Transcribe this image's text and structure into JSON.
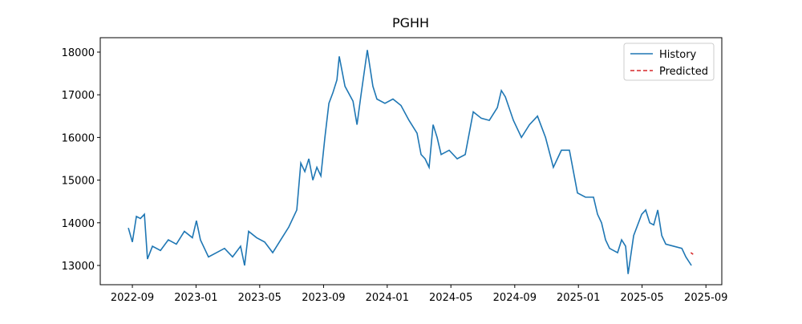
{
  "chart_data": {
    "type": "line",
    "title": "PGHH",
    "xlim": [
      2022.499,
      2025.75
    ],
    "ylim": [
      12549,
      18338
    ],
    "xticks": [
      {
        "value": 2022.667,
        "label": "2022-09"
      },
      {
        "value": 2023.0,
        "label": "2023-01"
      },
      {
        "value": 2023.333,
        "label": "2023-05"
      },
      {
        "value": 2023.667,
        "label": "2023-09"
      },
      {
        "value": 2024.0,
        "label": "2024-01"
      },
      {
        "value": 2024.333,
        "label": "2024-05"
      },
      {
        "value": 2024.667,
        "label": "2024-09"
      },
      {
        "value": 2025.0,
        "label": "2025-01"
      },
      {
        "value": 2025.333,
        "label": "2025-05"
      },
      {
        "value": 2025.667,
        "label": "2025-09"
      }
    ],
    "yticks": [
      13000,
      14000,
      15000,
      16000,
      17000,
      18000
    ],
    "legend": "upper right",
    "series": [
      {
        "name": "History",
        "color": "#1f77b4",
        "dash": "solid",
        "x": [
          2022.646,
          2022.667,
          2022.688,
          2022.709,
          2022.73,
          2022.746,
          2022.772,
          2022.814,
          2022.855,
          2022.897,
          2022.939,
          2022.981,
          2023.002,
          2023.023,
          2023.065,
          2023.107,
          2023.149,
          2023.191,
          2023.233,
          2023.254,
          2023.275,
          2023.317,
          2023.359,
          2023.401,
          2023.443,
          2023.485,
          2023.527,
          2023.548,
          2023.569,
          2023.59,
          2023.611,
          2023.632,
          2023.653,
          2023.674,
          2023.695,
          2023.716,
          2023.737,
          2023.749,
          2023.779,
          2023.821,
          2023.842,
          2023.863,
          2023.896,
          2023.925,
          2023.946,
          2023.988,
          2024.03,
          2024.072,
          2024.114,
          2024.156,
          2024.177,
          2024.198,
          2024.219,
          2024.24,
          2024.261,
          2024.282,
          2024.324,
          2024.366,
          2024.408,
          2024.45,
          2024.492,
          2024.534,
          2024.576,
          2024.597,
          2024.618,
          2024.66,
          2024.702,
          2024.744,
          2024.786,
          2024.828,
          2024.869,
          2024.911,
          2024.953,
          2024.995,
          2025.037,
          2025.079,
          2025.1,
          2025.121,
          2025.142,
          2025.163,
          2025.205,
          2025.226,
          2025.247,
          2025.26,
          2025.289,
          2025.331,
          2025.352,
          2025.373,
          2025.394,
          2025.415,
          2025.436,
          2025.457,
          2025.499,
          2025.541,
          2025.562,
          2025.591
        ],
        "values": [
          13880,
          13550,
          14150,
          14100,
          14200,
          13150,
          13450,
          13350,
          13600,
          13500,
          13800,
          13650,
          14050,
          13600,
          13200,
          13300,
          13400,
          13200,
          13450,
          13000,
          13800,
          13650,
          13550,
          13300,
          13600,
          13900,
          14300,
          15400,
          15200,
          15500,
          15000,
          15300,
          15100,
          16000,
          16800,
          17050,
          17350,
          17900,
          17200,
          16850,
          16300,
          17000,
          18050,
          17200,
          16900,
          16800,
          16900,
          16750,
          16400,
          16100,
          15600,
          15500,
          15300,
          16300,
          16000,
          15600,
          15700,
          15500,
          15600,
          16600,
          16450,
          16400,
          16700,
          17100,
          16950,
          16400,
          16000,
          16300,
          16500,
          16000,
          15300,
          15700,
          15700,
          14700,
          14600,
          14600,
          14200,
          14000,
          13600,
          13400,
          13300,
          13600,
          13450,
          12800,
          13700,
          14200,
          14300,
          14000,
          13950,
          14300,
          13700,
          13500,
          13450,
          13400,
          13200,
          13000
        ]
      },
      {
        "name": "Predicted",
        "color": "#d62728",
        "dash": "dashed",
        "x": [
          2025.588,
          2025.6
        ],
        "values": [
          13300,
          13260
        ]
      }
    ]
  }
}
